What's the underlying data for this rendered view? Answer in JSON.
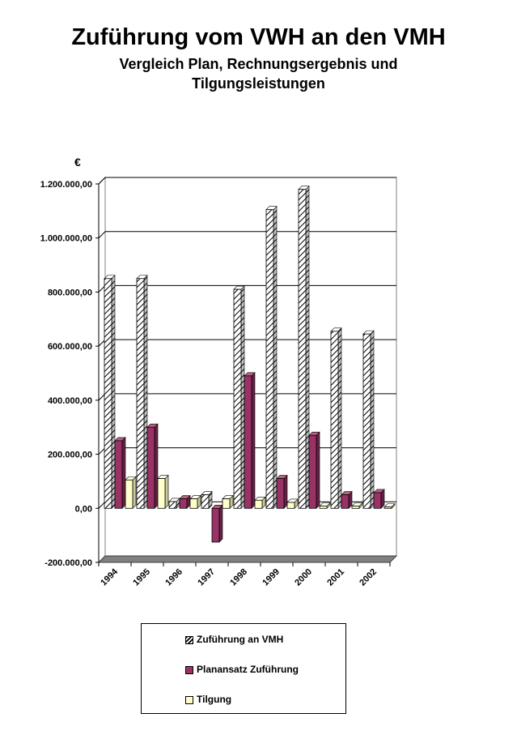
{
  "title": "Zuführung vom VWH an den VMH",
  "subtitle_line1": "Vergleich Plan, Rechnungsergebnis und",
  "subtitle_line2": "Tilgungsleistungen",
  "chart_data": {
    "type": "bar",
    "title": "Zuführung vom VWH an den VMH",
    "subtitle": "Vergleich Plan, Rechnungsergebnis und Tilgungsleistungen",
    "ylabel": "€",
    "xlabel": "",
    "categories": [
      "1994",
      "1995",
      "1996",
      "1997",
      "1998",
      "1999",
      "2000",
      "2001",
      "2002"
    ],
    "ylim": [
      -200000,
      1200000
    ],
    "yticks": [
      -200000,
      0,
      200000,
      400000,
      600000,
      800000,
      1000000,
      1200000
    ],
    "ytick_labels": [
      "-200.000,00",
      "0,00",
      "200.000,00",
      "400.000,00",
      "600.000,00",
      "800.000,00",
      "1.000.000,00",
      "1.200.000,00"
    ],
    "grid": true,
    "legend_position": "bottom",
    "series": [
      {
        "name": "Zuführung an VMH",
        "color": "#ffffff",
        "pattern": "diagonal-hatch",
        "values": [
          850000,
          850000,
          25000,
          50000,
          810000,
          1105000,
          1180000,
          655000,
          645000
        ]
      },
      {
        "name": "Planansatz Zuführung",
        "color": "#993366",
        "pattern": "solid",
        "values": [
          250000,
          300000,
          35000,
          -125000,
          490000,
          110000,
          270000,
          50000,
          58000
        ]
      },
      {
        "name": "Tilgung",
        "color": "#ffffcc",
        "pattern": "solid",
        "values": [
          105000,
          110000,
          35000,
          35000,
          30000,
          22000,
          8000,
          8000,
          5000
        ]
      }
    ]
  }
}
